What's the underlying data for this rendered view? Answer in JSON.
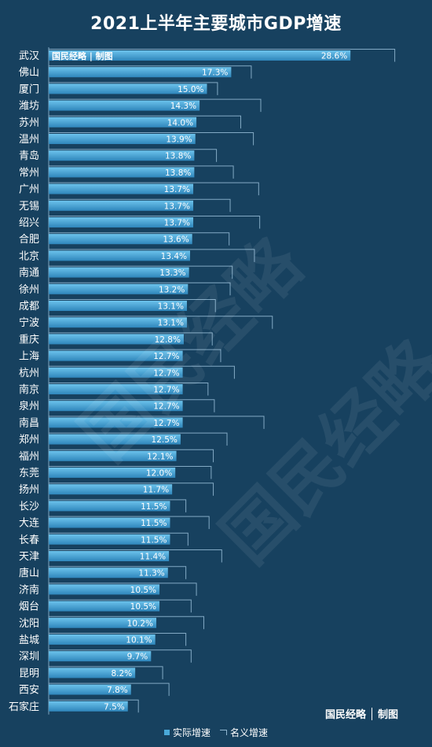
{
  "chart_data": {
    "type": "bar",
    "orientation": "horizontal",
    "title": "2021上半年主要城市GDP增速",
    "categories": [
      "武汉",
      "佛山",
      "厦门",
      "潍坊",
      "苏州",
      "温州",
      "青岛",
      "常州",
      "广州",
      "无锡",
      "绍兴",
      "合肥",
      "北京",
      "南通",
      "徐州",
      "成都",
      "宁波",
      "重庆",
      "上海",
      "杭州",
      "南京",
      "泉州",
      "南昌",
      "郑州",
      "福州",
      "东莞",
      "扬州",
      "长沙",
      "大连",
      "长春",
      "天津",
      "唐山",
      "济南",
      "烟台",
      "沈阳",
      "盐城",
      "深圳",
      "昆明",
      "西安",
      "石家庄"
    ],
    "series": [
      {
        "name": "实际增速",
        "color": "#4aa9d9",
        "values": [
          28.6,
          17.3,
          15.0,
          14.3,
          14.0,
          13.9,
          13.8,
          13.8,
          13.7,
          13.7,
          13.7,
          13.6,
          13.4,
          13.3,
          13.2,
          13.1,
          13.1,
          12.8,
          12.7,
          12.7,
          12.7,
          12.7,
          12.7,
          12.5,
          12.1,
          12.0,
          11.7,
          11.5,
          11.5,
          11.5,
          11.4,
          11.3,
          10.5,
          10.5,
          10.2,
          10.1,
          9.7,
          8.2,
          7.8,
          7.5
        ],
        "labels": [
          "28.6%",
          "17.3%",
          "15.0%",
          "14.3%",
          "14.0%",
          "13.9%",
          "13.8%",
          "13.8%",
          "13.7%",
          "13.7%",
          "13.7%",
          "13.6%",
          "13.4%",
          "13.3%",
          "13.2%",
          "13.1%",
          "13.1%",
          "12.8%",
          "12.7%",
          "12.7%",
          "12.7%",
          "12.7%",
          "12.7%",
          "12.5%",
          "12.1%",
          "12.0%",
          "11.7%",
          "11.5%",
          "11.5%",
          "11.5%",
          "11.4%",
          "11.3%",
          "10.5%",
          "10.5%",
          "10.2%",
          "10.1%",
          "9.7%",
          "8.2%",
          "7.8%",
          "7.5%"
        ]
      },
      {
        "name": "名义增速",
        "color": "#8fb6d0",
        "values": [
          32.8,
          19.2,
          16.0,
          20.1,
          18.2,
          19.4,
          15.9,
          17.5,
          19.9,
          17.2,
          20.0,
          17.1,
          19.5,
          17.4,
          17.2,
          15.8,
          21.2,
          15.5,
          16.3,
          17.6,
          15.1,
          15.7,
          20.4,
          16.9,
          15.6,
          15.4,
          15.6,
          13.0,
          15.2,
          13.2,
          16.4,
          13.0,
          14.0,
          13.5,
          14.7,
          13.0,
          13.5,
          10.8,
          11.4,
          8.5
        ]
      }
    ],
    "xlim": [
      0,
      33.5
    ],
    "grid": false,
    "legend_position": "bottom-center",
    "annotation": "国民经略 | 制图"
  },
  "watermark_text": "国民经略",
  "brand": {
    "name": "国民经略",
    "suffix": "制图"
  }
}
